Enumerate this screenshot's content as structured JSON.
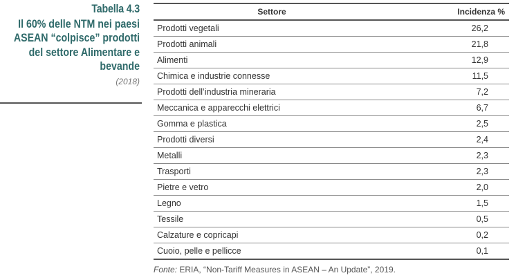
{
  "sidebar": {
    "label": "Tabella 4.3",
    "title": "Il 60% delle NTM nei paesi ASEAN “colpisce” prodotti del settore Alimentare e bevande",
    "year": "(2018)"
  },
  "table": {
    "headers": {
      "sector": "Settore",
      "value": "Incidenza %"
    },
    "rows": [
      {
        "sector": "Prodotti vegetali",
        "value": "26,2"
      },
      {
        "sector": "Prodotti animali",
        "value": "21,8"
      },
      {
        "sector": "Alimenti",
        "value": "12,9"
      },
      {
        "sector": "Chimica e industrie connesse",
        "value": "11,5"
      },
      {
        "sector": "Prodotti dell’industria mineraria",
        "value": "7,2"
      },
      {
        "sector": "Meccanica e apparecchi elettrici",
        "value": "6,7"
      },
      {
        "sector": "Gomma e plastica",
        "value": "2,5"
      },
      {
        "sector": "Prodotti diversi",
        "value": "2,4"
      },
      {
        "sector": "Metalli",
        "value": "2,3"
      },
      {
        "sector": "Trasporti",
        "value": "2,3"
      },
      {
        "sector": "Pietre e vetro",
        "value": "2,0"
      },
      {
        "sector": "Legno",
        "value": "1,5"
      },
      {
        "sector": "Tessile",
        "value": "0,5"
      },
      {
        "sector": "Calzature e copricapi",
        "value": "0,2"
      },
      {
        "sector": "Cuoio, pelle e pellicce",
        "value": "0,1"
      }
    ]
  },
  "source": {
    "label": "Fonte:",
    "text": " ERIA, “Non-Tariff Measures in ASEAN – An Update”, 2019."
  }
}
